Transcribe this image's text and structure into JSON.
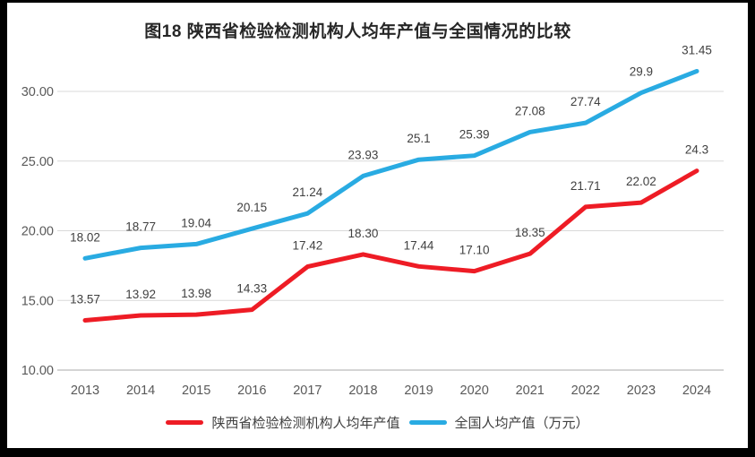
{
  "chart_data": {
    "type": "line",
    "title": "图18 陕西省检验检测机构人均年产值与全国情况的比较",
    "categories": [
      "2013",
      "2014",
      "2015",
      "2016",
      "2017",
      "2018",
      "2019",
      "2020",
      "2021",
      "2022",
      "2023",
      "2024"
    ],
    "series": [
      {
        "name": "陕西省检验检测机构人均年产值",
        "color": "#ee1c25",
        "values": [
          13.57,
          13.92,
          13.98,
          14.33,
          17.42,
          18.3,
          17.44,
          17.1,
          18.35,
          21.71,
          22.02,
          24.3
        ],
        "labels": [
          "13.57",
          "13.92",
          "13.98",
          "14.33",
          "17.42",
          "18.30",
          "17.44",
          "17.10",
          "18.35",
          "21.71",
          "22.02",
          "24.3"
        ]
      },
      {
        "name": "全国人均产值（万元）",
        "color": "#29abe2",
        "values": [
          18.02,
          18.77,
          19.04,
          20.15,
          21.24,
          23.93,
          25.1,
          25.39,
          27.08,
          27.74,
          29.9,
          31.45
        ],
        "labels": [
          "18.02",
          "18.77",
          "19.04",
          "20.15",
          "21.24",
          "23.93",
          "25.1",
          "25.39",
          "27.08",
          "27.74",
          "29.9",
          "31.45"
        ]
      }
    ],
    "yticks": [
      "10.00",
      "15.00",
      "20.00",
      "25.00",
      "30.00"
    ],
    "ytick_values": [
      10,
      15,
      20,
      25,
      30
    ],
    "ylim": [
      10,
      32.5
    ],
    "xlabel": "",
    "ylabel": "",
    "grid": true,
    "legend_position": "bottom",
    "colors": {
      "grid": "#d9d9d9",
      "axis": "#c6c6c6",
      "tick_text": "#595959",
      "data_label_text": "#404040",
      "title_text": "#262626",
      "background": "#ffffff",
      "frame": "#000000"
    }
  }
}
